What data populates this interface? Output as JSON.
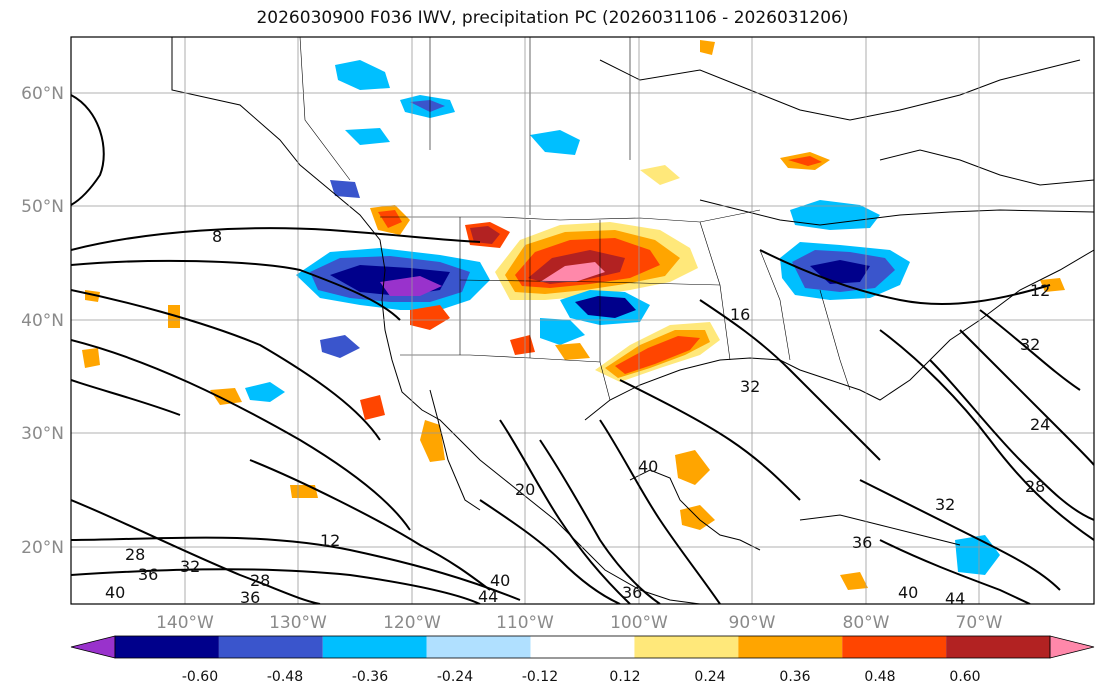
{
  "title": "2026030900 F036 IWV, precipitation PC (2026031106 - 2026031206)",
  "map": {
    "lat_ticks": [
      "60°N",
      "50°N",
      "40°N",
      "30°N",
      "20°N"
    ],
    "lon_ticks": [
      "140°W",
      "130°W",
      "120°W",
      "110°W",
      "100°W",
      "90°W",
      "80°W",
      "70°W"
    ],
    "contour_labels": [
      "8",
      "12",
      "16",
      "20",
      "24",
      "28",
      "32",
      "36",
      "40",
      "44"
    ]
  },
  "colorbar": {
    "colors": [
      "#9932cc",
      "#00008b",
      "#3a55cc",
      "#00bfff",
      "#b0e0ff",
      "#ffffff",
      "#ffe87a",
      "#ffa500",
      "#ff4500",
      "#b22222",
      "#ff88aa"
    ],
    "tick_labels": [
      "-0.60",
      "-0.48",
      "-0.36",
      "-0.24",
      "-0.12",
      "0.12",
      "0.24",
      "0.36",
      "0.48",
      "0.60"
    ]
  }
}
